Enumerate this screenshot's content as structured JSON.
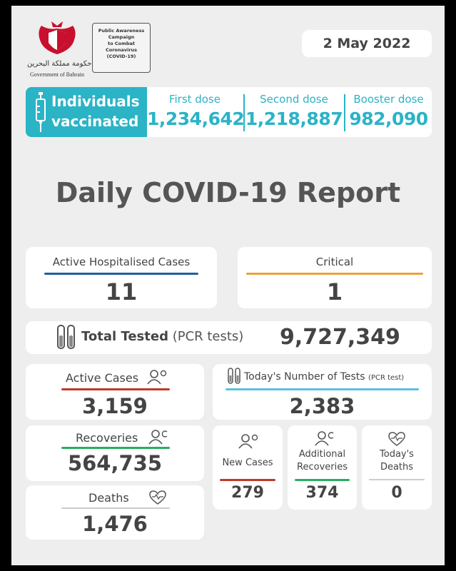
{
  "header": {
    "logo_caption": "Government of Bahrain",
    "logo_arabic": "حكومة مملكة البحرين",
    "campaign_lines": [
      "Public Awareness",
      "Campaign",
      "to Combat",
      "Coronavirus",
      "(COVID-19)"
    ],
    "date": "2 May 2022"
  },
  "vaccination": {
    "label_line1": "Individuals",
    "label_line2": "vaccinated",
    "first_dose_label": "First dose",
    "first_dose_value": "1,234,642",
    "second_dose_label": "Second dose",
    "second_dose_value": "1,218,887",
    "booster_dose_label": "Booster dose",
    "booster_dose_value": "982,090"
  },
  "title": "Daily COVID-19 Report",
  "stats": {
    "hospitalised_label": "Active Hospitalised Cases",
    "hospitalised_value": "11",
    "critical_label": "Critical",
    "critical_value": "1",
    "total_tested_label": "Total Tested",
    "total_tested_sub": "(PCR tests)",
    "total_tested_value": "9,727,349",
    "active_cases_label": "Active Cases",
    "active_cases_value": "3,159",
    "todays_tests_label": "Today's Number of Tests",
    "todays_tests_sub": "(PCR test)",
    "todays_tests_value": "2,383",
    "recoveries_label": "Recoveries",
    "recoveries_value": "564,735",
    "new_cases_label": "New Cases",
    "new_cases_value": "279",
    "additional_recoveries_line1": "Additional",
    "additional_recoveries_line2": "Recoveries",
    "additional_recoveries_value": "374",
    "todays_deaths_line1": "Today's",
    "todays_deaths_line2": "Deaths",
    "todays_deaths_value": "0",
    "deaths_label": "Deaths",
    "deaths_value": "1,476"
  },
  "colors": {
    "teal": "#2bb3c6",
    "blue": "#1f5f9e",
    "orange": "#e8a33a",
    "red": "#c0392b",
    "green": "#27ae60",
    "light_blue": "#5bc0de",
    "logo_red": "#c8102e"
  }
}
